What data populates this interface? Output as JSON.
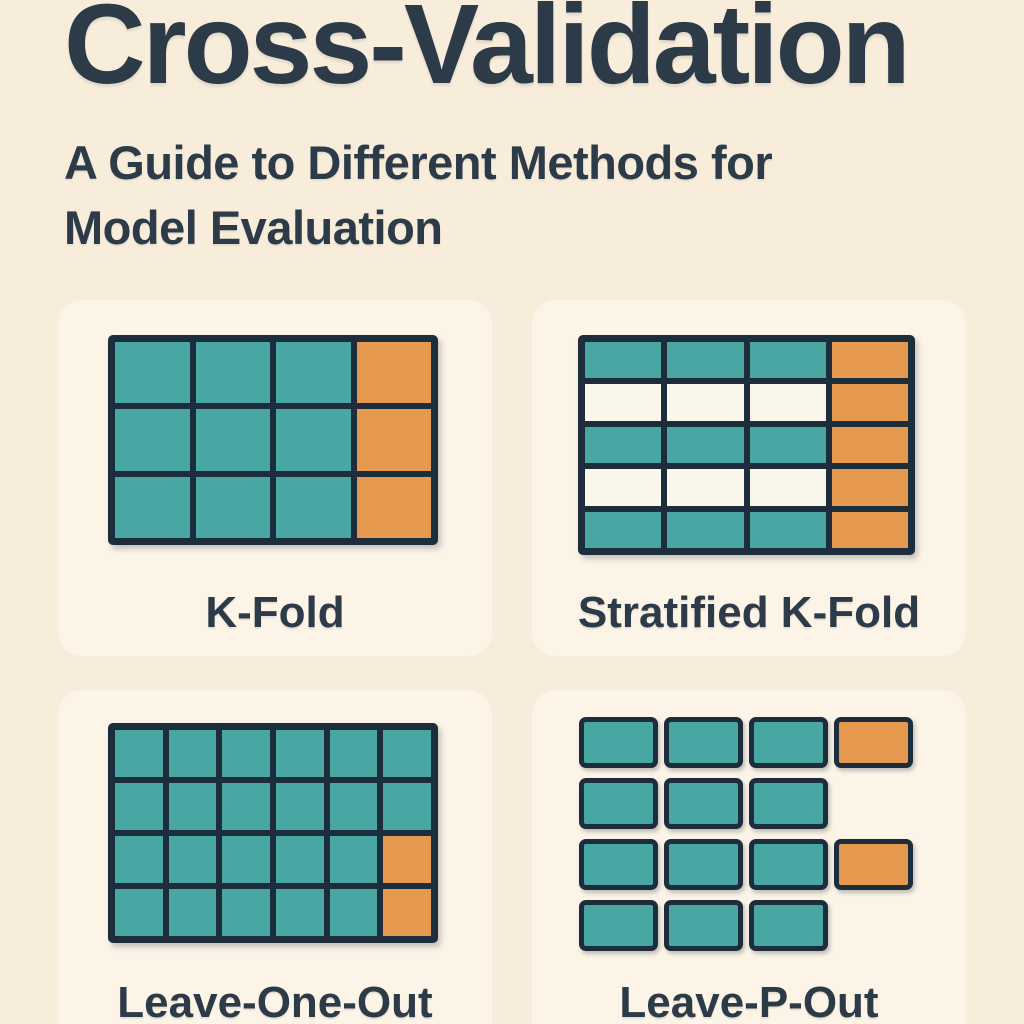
{
  "header": {
    "title": "Cross-Validation",
    "subtitle_lines": [
      "A Guide to Different Methods for",
      "Model Evaluation"
    ]
  },
  "colors": {
    "page_bg": "#f8edda",
    "card_bg": "#fcf5e7",
    "ink": "#1e2d3b",
    "text": "#2d3b49",
    "train": "#48a6a3",
    "test": "#e5994f",
    "blank": "#fbf6ea"
  },
  "legend_semantics": {
    "train": "training fold (teal)",
    "test": "held-out test fold (orange)",
    "blank": "empty stratum cell (cream)"
  },
  "panels": [
    {
      "label": "K-Fold",
      "style": "joined",
      "rows": [
        [
          "train",
          "train",
          "train",
          "test"
        ],
        [
          "train",
          "train",
          "train",
          "test"
        ],
        [
          "train",
          "train",
          "train",
          "test"
        ]
      ]
    },
    {
      "label": "Stratified K-Fold",
      "style": "joined",
      "rows": [
        [
          "train",
          "train",
          "train",
          "test"
        ],
        [
          "blank",
          "blank",
          "blank",
          "test"
        ],
        [
          "train",
          "train",
          "train",
          "test"
        ],
        [
          "blank",
          "blank",
          "blank",
          "test"
        ],
        [
          "train",
          "train",
          "train",
          "test"
        ]
      ]
    },
    {
      "label": "Leave-One-Out",
      "style": "joined",
      "rows": [
        [
          "train",
          "train",
          "train",
          "train",
          "train",
          "train"
        ],
        [
          "train",
          "train",
          "train",
          "train",
          "train",
          "train"
        ],
        [
          "train",
          "train",
          "train",
          "train",
          "train",
          "test"
        ],
        [
          "train",
          "train",
          "train",
          "train",
          "train",
          "test"
        ]
      ]
    },
    {
      "label": "Leave-P-Out",
      "style": "chips",
      "rows": [
        [
          "train",
          "train",
          "train",
          "test"
        ],
        [
          "train",
          "train",
          "train",
          "none"
        ],
        [
          "train",
          "train",
          "train",
          "test"
        ],
        [
          "train",
          "train",
          "train",
          "none"
        ]
      ]
    }
  ]
}
